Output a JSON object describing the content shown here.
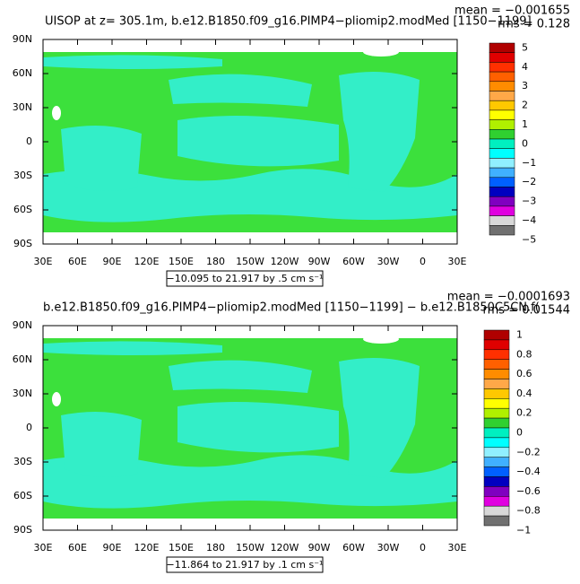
{
  "panels": [
    {
      "title": "UISOP at z= 305.1m, b.e12.B1850.f09_g16.PIMP4−pliomip2.modMed [1150−1199]",
      "mean": "mean = −0.001655",
      "rms": "rms = 0.128",
      "lat_ticks": [
        "90N",
        "60N",
        "30N",
        "0",
        "30S",
        "60S",
        "90S"
      ],
      "lon_ticks": [
        "30E",
        "60E",
        "90E",
        "120E",
        "150E",
        "180",
        "150W",
        "120W",
        "90W",
        "60W",
        "30W",
        "0",
        "30E"
      ],
      "range_label": "−10.095 to 21.917 by .5 cm s⁻¹",
      "colorbar_labels": [
        "5",
        "4",
        "3",
        "2",
        "1",
        "0",
        "−1",
        "−2",
        "−3",
        "−4",
        "−5"
      ]
    },
    {
      "title": "b.e12.B1850.f09_g16.PIMP4−pliomip2.modMed [1150−1199] − b.e12.B1850C5CN.f(",
      "mean": "mean = −0.0001693",
      "rms": "rms = 0.01544",
      "lat_ticks": [
        "90N",
        "60N",
        "30N",
        "0",
        "30S",
        "60S",
        "90S"
      ],
      "lon_ticks": [
        "30E",
        "60E",
        "90E",
        "120E",
        "150E",
        "180",
        "150W",
        "120W",
        "90W",
        "60W",
        "30W",
        "0",
        "30E"
      ],
      "range_label": "−11.864 to 21.917 by .1 cm s⁻¹",
      "colorbar_labels": [
        "1",
        "0.8",
        "0.6",
        "0.4",
        "0.2",
        "0",
        "−0.2",
        "−0.4",
        "−0.6",
        "−0.8",
        "−1"
      ]
    }
  ],
  "colorbar_colors": [
    "#b00000",
    "#e00000",
    "#ff3000",
    "#ff6000",
    "#ff8c00",
    "#ffa848",
    "#ffc800",
    "#ffff00",
    "#b0f000",
    "#30d030",
    "#00f0c0",
    "#00ffff",
    "#90f0ff",
    "#40b0ff",
    "#0060ff",
    "#0000c0",
    "#8000c0",
    "#e000e0",
    "#d8d8d8",
    "#707070"
  ]
}
